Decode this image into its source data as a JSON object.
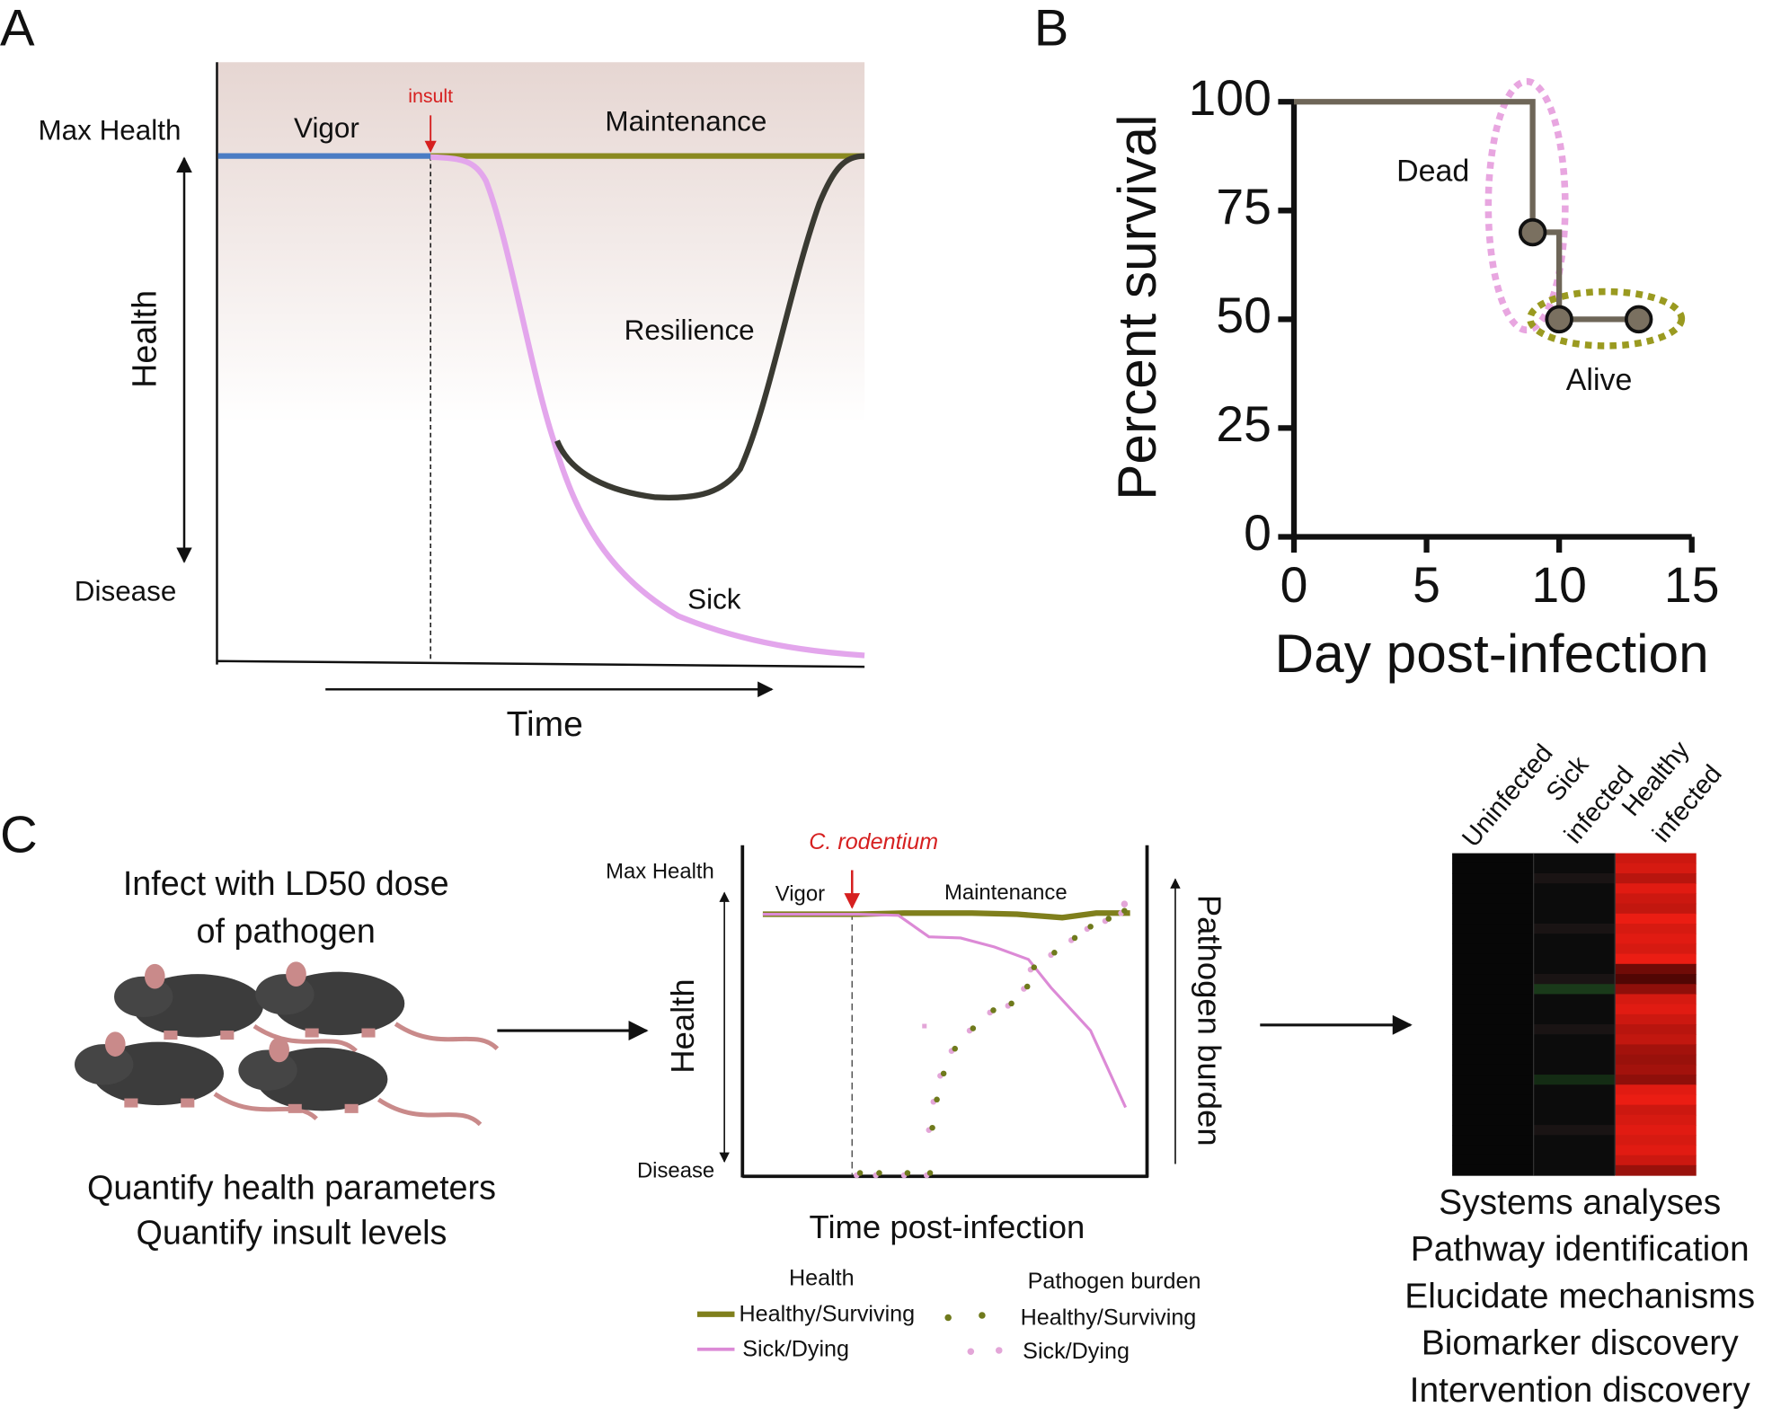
{
  "panel_labels": [
    "A",
    "B",
    "C"
  ],
  "panel_a": {
    "y_top": "Max Health",
    "y_bottom": "Disease",
    "y_label": "Health",
    "x_label": "Time",
    "labels": {
      "vigor": "Vigor",
      "maintenance": "Maintenance",
      "resilience": "Resilience",
      "sick": "Sick",
      "insult": "insult"
    }
  },
  "chart_data": {
    "type": "line",
    "x_label": "Day post-infection",
    "y_label": "Percent survival",
    "x": [
      0,
      9,
      10,
      13
    ],
    "values": [
      100,
      70,
      50,
      50
    ],
    "color": "#6e6658",
    "xlim": [
      0,
      15
    ],
    "xticks": [
      0,
      5,
      10,
      15
    ],
    "ylim": [
      0,
      100
    ],
    "yticks": [
      0,
      25,
      50,
      75,
      100
    ],
    "annotations": [
      "Dead",
      "Alive"
    ]
  },
  "panel_c": {
    "left_top": [
      "Infect with LD50 dose",
      "of pathogen"
    ],
    "left_bottom": [
      "Quantify health parameters",
      "Quantify insult levels"
    ],
    "mini_chart": {
      "insult": "C. rodentium",
      "y_top": "Max Health",
      "y_bottom": "Disease",
      "y_label": "Health",
      "y2_label": "Pathogen burden",
      "x_label": "Time post-infection",
      "vigor": "Vigor",
      "maintenance": "Maintenance",
      "legend_health": {
        "title": "Health",
        "items": [
          "Healthy/Surviving",
          "Sick/Dying"
        ]
      },
      "legend_burden": {
        "title": "Pathogen burden",
        "items": [
          "Healthy/Surviving",
          "Sick/Dying"
        ]
      }
    },
    "heatmap_columns": [
      [
        "Uninfected"
      ],
      [
        "Sick",
        "infected"
      ],
      [
        "Healthy",
        "infected"
      ]
    ],
    "outcomes": [
      "Systems analyses",
      "Pathway identification",
      "Elucidate mechanisms",
      "Biomarker discovery",
      "Intervention discovery"
    ]
  }
}
